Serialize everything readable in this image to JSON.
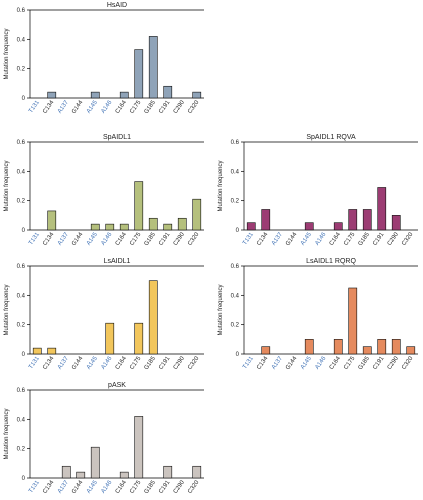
{
  "chart_data": [
    {
      "type": "bar",
      "title": "HsAID",
      "ylabel": "Mutation frequency",
      "ylim": [
        0,
        0.6
      ],
      "yticks": [
        "0",
        "0.2",
        "0.4",
        "0.6"
      ],
      "color": "#8fa3b8",
      "categories": [
        "T131",
        "C134",
        "A137",
        "G144",
        "A145",
        "A146",
        "C164",
        "C175",
        "G185",
        "C191",
        "C290",
        "C320"
      ],
      "category_colors": [
        "#3c6fb4",
        "#222222",
        "#3c6fb4",
        "#222222",
        "#3c6fb4",
        "#3c6fb4",
        "#222222",
        "#222222",
        "#222222",
        "#222222",
        "#222222",
        "#222222"
      ],
      "values": [
        0,
        0.04,
        0,
        0,
        0.04,
        0,
        0.04,
        0.33,
        0.42,
        0.08,
        0,
        0.04
      ]
    },
    {
      "type": "bar",
      "title": "SpAIDL1",
      "ylabel": "Mutation frequency",
      "ylim": [
        0,
        0.6
      ],
      "yticks": [
        "0",
        "0.2",
        "0.4",
        "0.6"
      ],
      "color": "#b5c07d",
      "categories": [
        "T131",
        "C134",
        "A137",
        "G144",
        "A145",
        "A146",
        "C164",
        "C175",
        "G185",
        "C191",
        "C290",
        "C320"
      ],
      "category_colors": [
        "#3c6fb4",
        "#222222",
        "#3c6fb4",
        "#222222",
        "#3c6fb4",
        "#3c6fb4",
        "#222222",
        "#222222",
        "#222222",
        "#222222",
        "#222222",
        "#222222"
      ],
      "values": [
        0,
        0.13,
        0,
        0,
        0.04,
        0.04,
        0.04,
        0.33,
        0.08,
        0.04,
        0.08,
        0.21
      ]
    },
    {
      "type": "bar",
      "title": "SpAIDL1 RQVA",
      "ylabel": "Mutation frequency",
      "ylim": [
        0,
        0.6
      ],
      "yticks": [
        "0",
        "0.2",
        "0.4",
        "0.6"
      ],
      "color": "#9c3c73",
      "categories": [
        "T131",
        "C134",
        "A137",
        "G144",
        "A145",
        "A146",
        "C164",
        "C175",
        "G185",
        "C191",
        "C290",
        "C320"
      ],
      "category_colors": [
        "#3c6fb4",
        "#222222",
        "#3c6fb4",
        "#222222",
        "#3c6fb4",
        "#3c6fb4",
        "#222222",
        "#222222",
        "#222222",
        "#222222",
        "#222222",
        "#222222"
      ],
      "values": [
        0.05,
        0.14,
        0,
        0,
        0.05,
        0,
        0.05,
        0.14,
        0.14,
        0.29,
        0.1,
        0
      ]
    },
    {
      "type": "bar",
      "title": "LsAIDL1",
      "ylabel": "Mutation frequency",
      "ylim": [
        0,
        0.6
      ],
      "yticks": [
        "0",
        "0.2",
        "0.4",
        "0.6"
      ],
      "color": "#f2c65c",
      "categories": [
        "T131",
        "C134",
        "A137",
        "G144",
        "A145",
        "A146",
        "C164",
        "C175",
        "G185",
        "C191",
        "C290",
        "C320"
      ],
      "category_colors": [
        "#3c6fb4",
        "#222222",
        "#3c6fb4",
        "#222222",
        "#3c6fb4",
        "#3c6fb4",
        "#222222",
        "#222222",
        "#222222",
        "#222222",
        "#222222",
        "#222222"
      ],
      "values": [
        0.04,
        0.04,
        0,
        0,
        0,
        0.21,
        0,
        0.21,
        0.5,
        0,
        0,
        0
      ]
    },
    {
      "type": "bar",
      "title": "LsAIDL1 RQRQ",
      "ylabel": "Mutation frequency",
      "ylim": [
        0,
        0.6
      ],
      "yticks": [
        "0",
        "0.2",
        "0.4",
        "0.6"
      ],
      "color": "#e58a5e",
      "categories": [
        "T131",
        "C134",
        "A137",
        "G144",
        "A145",
        "A146",
        "C164",
        "C175",
        "G185",
        "C191",
        "C290",
        "C320"
      ],
      "category_colors": [
        "#3c6fb4",
        "#222222",
        "#3c6fb4",
        "#222222",
        "#3c6fb4",
        "#3c6fb4",
        "#222222",
        "#222222",
        "#222222",
        "#222222",
        "#222222",
        "#222222"
      ],
      "values": [
        0,
        0.05,
        0,
        0,
        0.1,
        0,
        0.1,
        0.45,
        0.05,
        0.1,
        0.1,
        0.05
      ]
    },
    {
      "type": "bar",
      "title": "pASK",
      "ylabel": "Mutation frequency",
      "ylim": [
        0,
        0.6
      ],
      "yticks": [
        "0",
        "0.2",
        "0.4",
        "0.6"
      ],
      "color": "#cbc4bf",
      "categories": [
        "T131",
        "C134",
        "A137",
        "G144",
        "A145",
        "A146",
        "C164",
        "C175",
        "G185",
        "C191",
        "C290",
        "C320"
      ],
      "category_colors": [
        "#3c6fb4",
        "#222222",
        "#3c6fb4",
        "#222222",
        "#3c6fb4",
        "#3c6fb4",
        "#222222",
        "#222222",
        "#222222",
        "#222222",
        "#222222",
        "#222222"
      ],
      "values": [
        0,
        0,
        0.08,
        0.04,
        0.21,
        0,
        0.04,
        0.42,
        0,
        0.08,
        0,
        0.08
      ]
    }
  ]
}
